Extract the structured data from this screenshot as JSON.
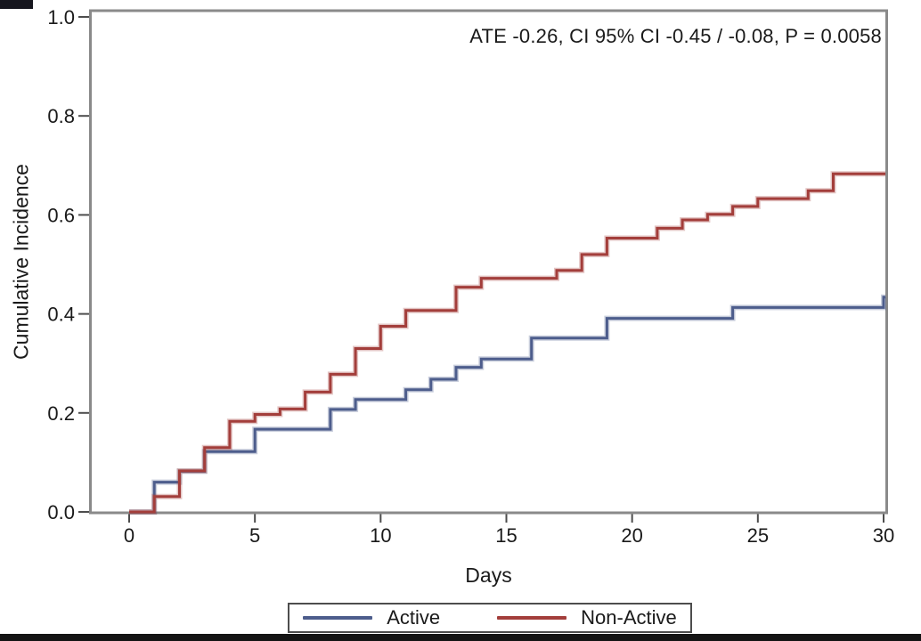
{
  "chart_data": {
    "type": "line",
    "line_style": "step-post",
    "title": "",
    "annotation": "ATE -0.26, CI 95% CI -0.45 / -0.08, P = 0.0058",
    "xlabel": "Days",
    "ylabel": "Cumulative Incidence",
    "xlim": [
      0,
      30
    ],
    "ylim": [
      0.0,
      1.0
    ],
    "xticks": [
      0,
      5,
      10,
      15,
      20,
      25,
      30
    ],
    "ytick_labels": [
      "0.0",
      "0.2",
      "0.4",
      "0.6",
      "0.8",
      "1.0"
    ],
    "grid": false,
    "legend_position": "bottom-center",
    "frame_color": "#8a8a8a",
    "tick_color": "#4d4d4d",
    "text_color": "#1a1a1a",
    "series": [
      {
        "name": "Active",
        "color": "#4d5d8c",
        "points": [
          [
            0,
            0.0
          ],
          [
            1,
            0.06
          ],
          [
            2,
            0.082
          ],
          [
            3,
            0.122
          ],
          [
            5,
            0.167
          ],
          [
            8,
            0.207
          ],
          [
            9,
            0.227
          ],
          [
            11,
            0.247
          ],
          [
            12,
            0.268
          ],
          [
            13,
            0.292
          ],
          [
            14,
            0.309
          ],
          [
            16,
            0.351
          ],
          [
            19,
            0.391
          ],
          [
            24,
            0.413
          ],
          [
            30,
            0.434
          ]
        ]
      },
      {
        "name": "Non-Active",
        "color": "#a33e3b",
        "points": [
          [
            0,
            0.0
          ],
          [
            1,
            0.031
          ],
          [
            2,
            0.083
          ],
          [
            3,
            0.13
          ],
          [
            4,
            0.183
          ],
          [
            5,
            0.197
          ],
          [
            6,
            0.208
          ],
          [
            7,
            0.242
          ],
          [
            8,
            0.278
          ],
          [
            9,
            0.33
          ],
          [
            10,
            0.375
          ],
          [
            11,
            0.407
          ],
          [
            13,
            0.454
          ],
          [
            14,
            0.472
          ],
          [
            17,
            0.488
          ],
          [
            18,
            0.52
          ],
          [
            19,
            0.553
          ],
          [
            21,
            0.573
          ],
          [
            22,
            0.59
          ],
          [
            23,
            0.601
          ],
          [
            24,
            0.617
          ],
          [
            25,
            0.633
          ],
          [
            27,
            0.649
          ],
          [
            28,
            0.683
          ]
        ]
      }
    ]
  },
  "legend": {
    "items": [
      {
        "label": "Active",
        "color": "#4d5d8c"
      },
      {
        "label": "Non-Active",
        "color": "#a33e3b"
      }
    ]
  }
}
